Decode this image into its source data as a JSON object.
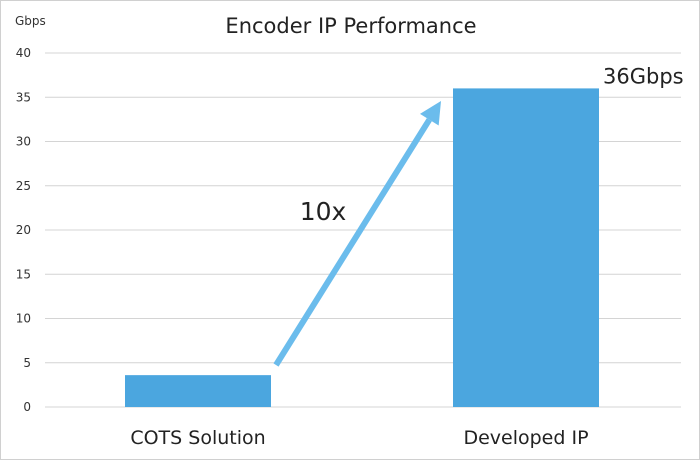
{
  "chart_data": {
    "type": "bar",
    "title": "Encoder IP Performance",
    "ylabel": "Gbps",
    "categories": [
      "COTS Solution",
      "Developed IP"
    ],
    "values": [
      3.6,
      36
    ],
    "data_labels": [
      "",
      "36Gbps"
    ],
    "ylim": [
      0,
      40
    ],
    "yticks": [
      0,
      5,
      10,
      15,
      20,
      25,
      30,
      35,
      40
    ],
    "ytick_labels": [
      "0",
      "5",
      "10",
      "15",
      "20",
      "25",
      "30",
      "35",
      "40"
    ],
    "grid": true,
    "annotation": {
      "text": "10x",
      "from_category": "COTS Solution",
      "to_category": "Developed IP"
    },
    "colors": {
      "bar": "#4ba6df",
      "arrow": "#6bbcec",
      "grid": "#d4d4d4"
    }
  }
}
